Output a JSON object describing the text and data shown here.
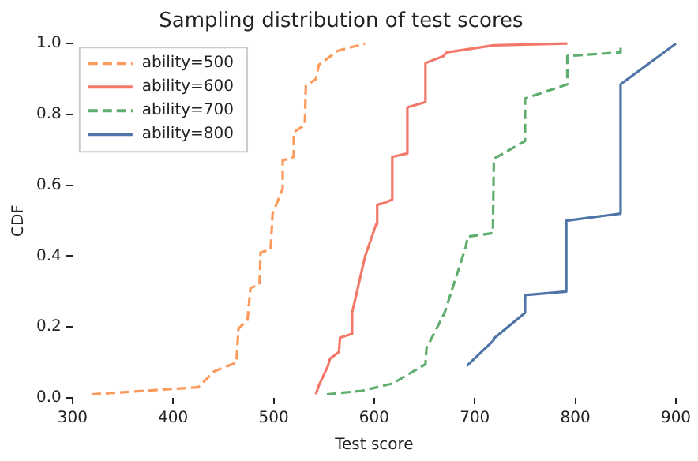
{
  "chart_data": {
    "type": "line",
    "title": "Sampling distribution of test scores",
    "xlabel": "Test score",
    "ylabel": "CDF",
    "xlim": [
      300,
      900
    ],
    "xticks": [
      300,
      400,
      500,
      600,
      700,
      800,
      900
    ],
    "ylim": [
      0,
      1
    ],
    "yticks": [
      {
        "value": 0,
        "label": "0.0"
      },
      {
        "value": 0.2,
        "label": "0.2"
      },
      {
        "value": 0.4,
        "label": "0.4"
      },
      {
        "value": 0.6,
        "label": "0.6"
      },
      {
        "value": 0.8,
        "label": "0.8"
      },
      {
        "value": 1,
        "label": "1.0"
      }
    ],
    "grid": false,
    "legend": "top left",
    "marker": "none",
    "series": [
      {
        "name": "ability=500",
        "color": "#fc9a5c",
        "line_style": "dashed",
        "x": [
          319,
          425,
          441,
          463,
          465,
          474,
          477,
          486,
          487,
          497,
          499,
          509,
          509,
          520,
          520,
          531,
          532,
          542,
          545,
          564,
          591
        ],
        "values": [
          0.01,
          0.03,
          0.075,
          0.1,
          0.195,
          0.22,
          0.31,
          0.32,
          0.41,
          0.42,
          0.52,
          0.59,
          0.67,
          0.68,
          0.75,
          0.77,
          0.88,
          0.9,
          0.94,
          0.98,
          1.0
        ]
      },
      {
        "name": "ability=600",
        "color": "#f4786a",
        "line_style": "solid",
        "x": [
          542,
          545,
          554,
          556,
          565,
          566,
          577,
          578,
          591,
          602,
          603,
          610,
          618,
          618,
          633,
          633,
          651,
          651,
          669,
          672,
          719,
          792
        ],
        "values": [
          0.01,
          0.035,
          0.09,
          0.11,
          0.13,
          0.17,
          0.18,
          0.24,
          0.4,
          0.49,
          0.545,
          0.55,
          0.56,
          0.68,
          0.69,
          0.82,
          0.835,
          0.945,
          0.965,
          0.975,
          0.995,
          1.0
        ]
      },
      {
        "name": "ability=700",
        "color": "#5fae6e",
        "line_style": "dashed",
        "x": [
          553,
          588,
          610,
          618,
          651,
          652,
          670,
          691,
          693,
          718,
          719,
          750,
          750,
          792,
          792,
          845,
          845
        ],
        "values": [
          0.01,
          0.02,
          0.035,
          0.04,
          0.095,
          0.14,
          0.24,
          0.425,
          0.455,
          0.465,
          0.675,
          0.725,
          0.845,
          0.885,
          0.965,
          0.975,
          1.0
        ]
      },
      {
        "name": "ability=800",
        "color": "#4e74a8",
        "line_style": "solid",
        "x": [
          692,
          718,
          720,
          750,
          750,
          791,
          791,
          845,
          845,
          900
        ],
        "values": [
          0.09,
          0.16,
          0.17,
          0.24,
          0.29,
          0.3,
          0.5,
          0.52,
          0.885,
          1.0
        ]
      }
    ]
  }
}
